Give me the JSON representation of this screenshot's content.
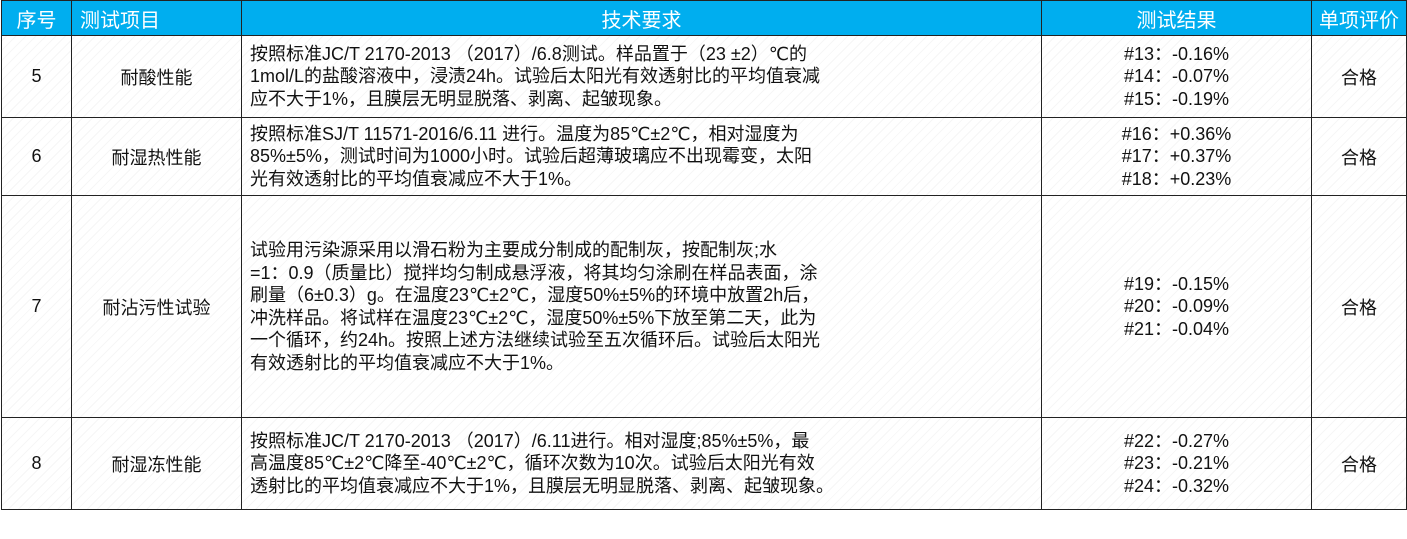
{
  "header": {
    "colors": {
      "header_bg": "#00aeef",
      "header_text": "#ffffff"
    },
    "columns": [
      "序号",
      "测试项目",
      "技术要求",
      "测试结果",
      "单项评价"
    ]
  },
  "rows": [
    {
      "no": "5",
      "item": "耐酸性能",
      "requirement": [
        "按照标准JC/T 2170-2013 （2017）/6.8测试。样品置于（23 ±2）℃的",
        "1mol/L的盐酸溶液中，浸渍24h。试验后太阳光有效透射比的平均值衰减",
        "应不大于1%，且膜层无明显脱落、剥离、起皱现象。"
      ],
      "results": [
        "#13：-0.16%",
        "#14：-0.07%",
        "#15：-0.19%"
      ],
      "verdict": "合格"
    },
    {
      "no": "6",
      "item": "耐湿热性能",
      "requirement": [
        "按照标准SJ/T 11571-2016/6.11 进行。温度为85℃±2℃，相对湿度为",
        "85%±5%，测试时间为1000小时。试验后超薄玻璃应不出现霉变，太阳",
        "光有效透射比的平均值衰减应不大于1%。"
      ],
      "results": [
        "#16：+0.36%",
        "#17：+0.37%",
        "#18：+0.23%"
      ],
      "verdict": "合格"
    },
    {
      "no": "7",
      "item": "耐沾污性试验",
      "requirement": [
        "试验用污染源采用以滑石粉为主要成分制成的配制灰，按配制灰;水",
        "=1：0.9（质量比）搅拌均匀制成悬浮液，将其均匀涂刷在样品表面，涂",
        "刷量（6±0.3）g。在温度23℃±2℃，湿度50%±5%的环境中放置2h后，",
        "冲洗样品。将试样在温度23℃±2℃，湿度50%±5%下放至第二天，此为",
        "一个循环，约24h。按照上述方法继续试验至五次循环后。试验后太阳光",
        "有效透射比的平均值衰减应不大于1%。"
      ],
      "results": [
        "#19：-0.15%",
        "#20：-0.09%",
        "#21：-0.04%"
      ],
      "verdict": "合格"
    },
    {
      "no": "8",
      "item": "耐湿冻性能",
      "requirement": [
        "按照标准JC/T 2170-2013 （2017）/6.11进行。相对湿度;85%±5%，最",
        "高温度85℃±2℃降至-40℃±2℃，循环次数为10次。试验后太阳光有效",
        "透射比的平均值衰减应不大于1%，且膜层无明显脱落、剥离、起皱现象。"
      ],
      "results": [
        "#22：-0.27%",
        "#23：-0.21%",
        "#24：-0.32%"
      ],
      "verdict": "合格"
    }
  ]
}
